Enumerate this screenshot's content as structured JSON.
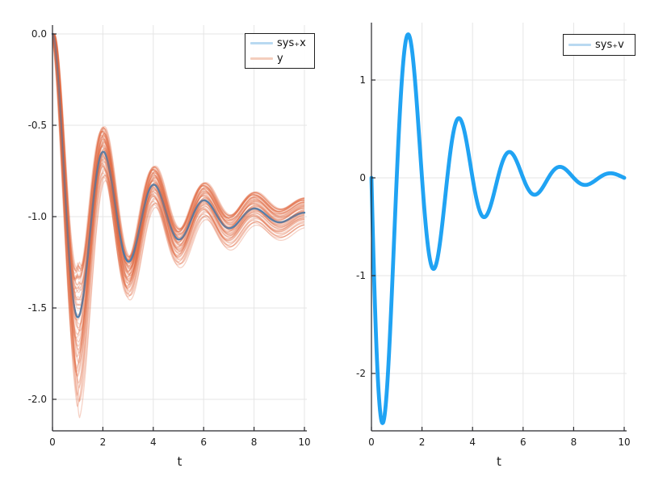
{
  "figure": {
    "background": "#ffffff",
    "grid_color": "#e5e5e5",
    "spine_color": "#26262a",
    "tick_label_color": "#1c1c1c"
  },
  "chart_data": [
    {
      "type": "line",
      "id": "left-subplot",
      "title": "",
      "xlabel": "t",
      "ylabel": "",
      "xlim": [
        0,
        10.1
      ],
      "ylim": [
        -2.17,
        0.05
      ],
      "xticks": [
        0,
        2,
        4,
        6,
        8,
        10
      ],
      "xtick_labels": [
        "0",
        "2",
        "4",
        "6",
        "8",
        "10"
      ],
      "yticks": [
        0,
        -0.5,
        -1,
        -1.5,
        -2
      ],
      "ytick_labels": [
        "0.0",
        "-0.5",
        "-1.0",
        "-1.5",
        "-2.0"
      ],
      "grid": true,
      "legend": {
        "position": "top-right-inner",
        "entries": [
          {
            "label": "sys₊x",
            "sample_color": "#b9d9f1"
          },
          {
            "label": "y",
            "sample_color": "#f4cebd"
          }
        ]
      },
      "series": [
        {
          "name": "sys₊x",
          "style": "single-damped-oscillation",
          "color": "#3f79ae",
          "apparent_color_under_ensemble": "#97859b",
          "line_width": 2.4,
          "model": {
            "form": "-1 + exp(a*t + b*t*exp(c*t)) * (cos(pi*t) + p*sin(pi*t))",
            "a": -0.38,
            "b": -0.34,
            "c": -0.45,
            "p": 0.175,
            "omega": 3.14159
          },
          "t_samples": [
            0,
            0.5,
            1,
            1.5,
            2,
            2.5,
            3,
            3.5,
            4,
            4.5,
            5,
            5.5,
            6,
            6.5,
            7,
            7.5,
            8,
            8.5,
            9,
            9.5,
            10
          ],
          "values": [
            0,
            -0.87,
            -1.55,
            -1.08,
            -0.65,
            -0.95,
            -1.25,
            -1.04,
            -0.82,
            -0.97,
            -1.12,
            -1.02,
            -0.91,
            -0.99,
            -1.06,
            -1.01,
            -0.96,
            -0.99,
            -1.03,
            -1.01,
            -0.98
          ]
        },
        {
          "name": "y",
          "style": "ensemble-band",
          "count": 48,
          "color": "#e26942",
          "alpha": 0.3,
          "line_width": 1.3,
          "center_model": {
            "form": "-1 + exp(a*t + b*t*exp(c*t)) * (cos(pi*t) + p*sin(pi*t)) - biasK*t*exp(biasD*t)",
            "a": -0.36,
            "b": -0.2,
            "c": -0.4,
            "p": 0.175,
            "biasK": 0.1,
            "biasD": -0.6
          },
          "halfwidth_model": {
            "ramp": 0.31,
            "rampPow": 2.5,
            "spikePow": 3,
            "spikeDecay": 4.5,
            "plateau": 0.135,
            "plateauRise": 1.5,
            "plateauDecay": 0.055
          },
          "t_samples": [
            0,
            0.5,
            1,
            1.5,
            2,
            2.5,
            3,
            3.5,
            4,
            4.5,
            5,
            5.5,
            6,
            6.5,
            7,
            7.5,
            8,
            8.5,
            9,
            9.5,
            10
          ],
          "band_center": [
            0,
            -0.9,
            -1.67,
            -1.15,
            -0.65,
            -1.0,
            -1.33,
            -1.09,
            -0.84,
            -1.0,
            -1.17,
            -1.04,
            -0.91,
            -1.0,
            -1.08,
            -1.02,
            -0.95,
            -1.0,
            -1.04,
            -1.01,
            -0.98
          ],
          "band_halfwidth": [
            0,
            0.12,
            0.41,
            0.22,
            0.14,
            0.12,
            0.11,
            0.11,
            0.11,
            0.105,
            0.1,
            0.1,
            0.097,
            0.094,
            0.092,
            0.09,
            0.087,
            0.085,
            0.082,
            0.08,
            0.078
          ]
        }
      ]
    },
    {
      "type": "line",
      "id": "right-subplot",
      "title": "",
      "xlabel": "t",
      "ylabel": "",
      "xlim": [
        0,
        10.1
      ],
      "ylim": [
        -2.59,
        1.6
      ],
      "xticks": [
        0,
        2,
        4,
        6,
        8,
        10
      ],
      "xtick_labels": [
        "0",
        "2",
        "4",
        "6",
        "8",
        "10"
      ],
      "yticks": [
        1,
        0,
        -1,
        -2
      ],
      "ytick_labels": [
        "1",
        "0",
        "-1",
        "-2"
      ],
      "grid": true,
      "legend": {
        "position": "top-right-inner",
        "entries": [
          {
            "label": "sys₊v",
            "sample_color": "#b9d9f1"
          }
        ]
      },
      "series": [
        {
          "name": "sys₊v",
          "style": "single-damped-oscillation",
          "color": "#0d9bf2",
          "line_width": 4.8,
          "model": {
            "form": "A * exp(a*t + b*t*exp(c*t)) * sin(pi*t)",
            "A": -3.4,
            "a": -0.45,
            "b": -0.25,
            "c": -0.5,
            "omega": 3.14159
          },
          "t_samples": [
            0,
            0.5,
            1,
            1.5,
            2,
            2.5,
            3,
            3.5,
            4,
            4.5,
            5,
            5.5,
            6,
            6.5,
            7,
            7.5,
            8,
            8.5,
            9,
            9.5,
            10
          ],
          "values": [
            0,
            -2.46,
            0,
            1.45,
            0,
            -0.92,
            0,
            0.6,
            0,
            -0.4,
            0,
            0.26,
            0,
            -0.17,
            0,
            0.11,
            0,
            -0.07,
            0,
            0.05,
            0
          ]
        }
      ]
    }
  ]
}
